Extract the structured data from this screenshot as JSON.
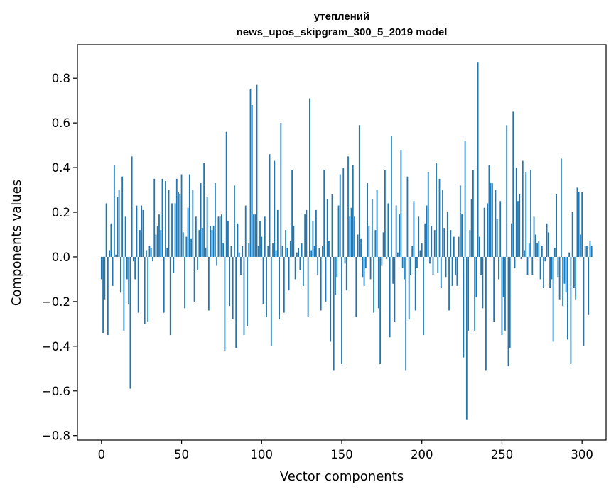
{
  "chart_data": {
    "type": "bar",
    "title_line1": "утеплений",
    "title_line2": "news_upos_skipgram_300_5_2019 model",
    "xlabel": "Vector components",
    "ylabel": "Components values",
    "xlim": [
      -15,
      315
    ],
    "ylim": [
      -0.82,
      0.95
    ],
    "xticks": [
      0,
      50,
      100,
      150,
      200,
      250,
      300
    ],
    "xtick_labels": [
      "0",
      "50",
      "100",
      "150",
      "200",
      "250",
      "300"
    ],
    "yticks": [
      -0.8,
      -0.6,
      -0.4,
      -0.2,
      0.0,
      0.2,
      0.4,
      0.6,
      0.8
    ],
    "ytick_labels": [
      "−0.8",
      "−0.6",
      "−0.4",
      "−0.2",
      "0.0",
      "0.2",
      "0.4",
      "0.6",
      "0.8"
    ],
    "bar_color": "#1f77b4",
    "values": [
      -0.1,
      -0.34,
      -0.19,
      0.24,
      -0.35,
      0.03,
      0.15,
      -0.13,
      0.41,
      0.01,
      0.27,
      0.3,
      -0.16,
      0.36,
      -0.33,
      0.18,
      -0.1,
      -0.21,
      -0.59,
      0.45,
      -0.02,
      -0.1,
      0.23,
      -0.25,
      0.12,
      0.23,
      0.21,
      -0.3,
      0.03,
      -0.29,
      0.05,
      0.04,
      -0.02,
      0.35,
      0.1,
      0.14,
      0.19,
      0.12,
      0.35,
      -0.25,
      0.34,
      0.04,
      0.3,
      -0.35,
      0.24,
      -0.07,
      0.24,
      0.35,
      0.29,
      0.28,
      0.37,
      0.11,
      -0.23,
      0.09,
      0.22,
      0.37,
      0.08,
      0.3,
      -0.2,
      0.18,
      -0.06,
      0.12,
      0.33,
      0.13,
      0.42,
      0.04,
      0.27,
      -0.24,
      0.14,
      0.12,
      0.14,
      0.33,
      -0.04,
      0.18,
      0.18,
      0.19,
      0.06,
      -0.42,
      0.56,
      0.16,
      -0.22,
      0.05,
      -0.28,
      0.32,
      -0.41,
      0.15,
      0.02,
      -0.08,
      0.05,
      -0.35,
      0.23,
      -0.31,
      0.06,
      0.75,
      0.68,
      0.19,
      0.19,
      0.77,
      0.05,
      0.16,
      0.09,
      -0.21,
      0.18,
      -0.27,
      0.05,
      0.46,
      -0.4,
      0.06,
      0.43,
      0.03,
      0.21,
      -0.28,
      0.6,
      0.05,
      -0.25,
      0.12,
      0.04,
      -0.15,
      0.07,
      0.39,
      0.14,
      -0.1,
      0.02,
      0.04,
      -0.06,
      0.06,
      -0.13,
      0.19,
      0.21,
      -0.27,
      0.71,
      0.03,
      0.16,
      0.05,
      0.21,
      -0.08,
      0.04,
      -0.24,
      0.05,
      0.39,
      -0.2,
      0.26,
      0.07,
      -0.38,
      0.28,
      -0.51,
      -0.17,
      -0.09,
      0.23,
      0.37,
      -0.48,
      0.4,
      -0.03,
      -0.15,
      0.45,
      0.18,
      0.22,
      0.41,
      0.18,
      -0.27,
      0.1,
      0.59,
      0.08,
      -0.09,
      -0.13,
      -0.05,
      0.33,
      0.14,
      -0.1,
      0.26,
      -0.25,
      0.12,
      0.3,
      -0.23,
      -0.48,
      -0.04,
      0.11,
      0.39,
      -0.01,
      0.24,
      -0.36,
      0.54,
      -0.12,
      -0.29,
      0.23,
      0.02,
      0.19,
      0.48,
      -0.05,
      -0.1,
      -0.51,
      0.36,
      -0.28,
      -0.08,
      0.05,
      0.25,
      -0.24,
      -0.05,
      0.18,
      0.03,
      0.06,
      -0.35,
      0.15,
      0.23,
      0.38,
      -0.03,
      0.14,
      -0.08,
      0.12,
      0.42,
      -0.07,
      0.35,
      -0.14,
      0.3,
      0.13,
      -0.09,
      0.2,
      -0.24,
      0.12,
      -0.13,
      0.09,
      -0.08,
      -0.13,
      0.09,
      0.32,
      0.19,
      -0.45,
      0.52,
      -0.73,
      -0.33,
      0.12,
      0.26,
      0.39,
      -0.33,
      -0.18,
      0.87,
      0.09,
      -0.08,
      -0.23,
      0.22,
      -0.51,
      0.24,
      0.41,
      0.33,
      0.33,
      -0.29,
      0.3,
      0.17,
      -0.1,
      0.25,
      -0.35,
      -0.18,
      -0.33,
      0.59,
      -0.49,
      -0.41,
      0.15,
      0.65,
      -0.05,
      0.4,
      0.25,
      0.28,
      -0.01,
      0.43,
      0.03,
      0.38,
      -0.08,
      0.06,
      0.39,
      -0.08,
      0.18,
      0.1,
      0.06,
      0.07,
      -0.1,
      0.05,
      -0.14,
      -0.02,
      0.15,
      0.11,
      -0.14,
      -0.1,
      -0.38,
      0.04,
      0.28,
      -0.09,
      -0.19,
      0.44,
      -0.22,
      -0.12,
      -0.16,
      -0.37,
      0.02,
      -0.48,
      0.2,
      -0.14,
      -0.19,
      0.31,
      0.29,
      0.1,
      0.29,
      -0.4,
      0.05,
      0.05,
      -0.26,
      0.07,
      0.05
    ]
  }
}
